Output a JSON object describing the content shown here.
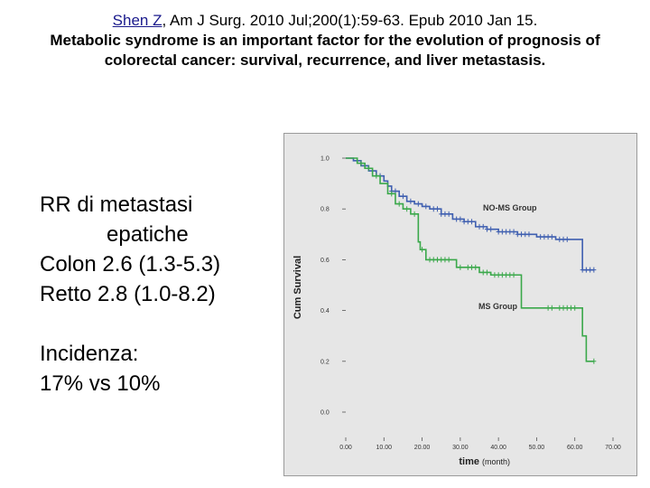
{
  "header": {
    "author_link": "Shen Z",
    "citation": ",  Am J Surg. 2010 Jul;200(1):59-63. Epub 2010 Jan 15.",
    "title": "Metabolic syndrome is an important factor for the evolution of prognosis of colorectal cancer: survival, recurrence, and liver metastasis."
  },
  "left_text": {
    "line1": "RR di metastasi",
    "line2": "epatiche",
    "line3": "Colon 2.6 (1.3-5.3)",
    "line4": "Retto  2.8 (1.0-8.2)",
    "line5": "Incidenza:",
    "line6": "17% vs 10%"
  },
  "colors": {
    "no_ms": "#3f5fb0",
    "ms": "#3aa84a",
    "plot_bg": "#e6e6e6"
  },
  "chart_data": {
    "type": "line",
    "xlabel": "time",
    "xunit": "(month)",
    "ylabel": "Cum Survival",
    "xlim": [
      0,
      70
    ],
    "ylim": [
      0,
      1
    ],
    "x_ticks": [
      "0.00",
      "10.00",
      "20.00",
      "30.00",
      "40.00",
      "50.00",
      "60.00",
      "70.00"
    ],
    "y_ticks": [
      "0.0",
      "0.2",
      "0.4",
      "0.6",
      "0.8",
      "1.0"
    ],
    "series": [
      {
        "name": "NO-MS Group",
        "step_x": [
          0,
          2,
          4,
          6,
          8,
          10,
          11,
          12,
          14,
          16,
          18,
          20,
          22,
          25,
          28,
          31,
          34,
          37,
          40,
          45,
          50,
          55,
          60,
          62,
          65
        ],
        "step_y": [
          1.0,
          0.99,
          0.97,
          0.95,
          0.93,
          0.91,
          0.89,
          0.87,
          0.85,
          0.83,
          0.82,
          0.81,
          0.8,
          0.78,
          0.76,
          0.75,
          0.73,
          0.72,
          0.71,
          0.7,
          0.69,
          0.68,
          0.68,
          0.56,
          0.56
        ],
        "censor_x": [
          3,
          5,
          7,
          9,
          12,
          13,
          15,
          17,
          19,
          21,
          23,
          24,
          25,
          26,
          27,
          29,
          30,
          31,
          32,
          33,
          35,
          36,
          37,
          38,
          40,
          41,
          42,
          43,
          44,
          45,
          46,
          47,
          48,
          51,
          52,
          53,
          54,
          56,
          57,
          58,
          62,
          63,
          64,
          65
        ]
      },
      {
        "name": "MS Group",
        "step_x": [
          0,
          3,
          5,
          7,
          9,
          11,
          13,
          15,
          17,
          19,
          19.5,
          21,
          29,
          35,
          38,
          46,
          55,
          62,
          63,
          65
        ],
        "step_y": [
          1.0,
          0.98,
          0.96,
          0.93,
          0.9,
          0.86,
          0.82,
          0.8,
          0.78,
          0.67,
          0.64,
          0.6,
          0.57,
          0.55,
          0.54,
          0.41,
          0.41,
          0.3,
          0.2,
          0.2
        ],
        "censor_x": [
          4,
          6,
          8,
          12,
          14,
          16,
          18,
          20,
          22,
          23,
          24,
          25,
          26,
          27,
          30,
          32,
          33,
          34,
          36,
          37,
          39,
          40,
          41,
          42,
          43,
          44,
          53,
          54,
          56,
          57,
          58,
          59,
          60,
          65
        ]
      }
    ],
    "annotations": [
      "NO-MS Group",
      "MS Group"
    ]
  }
}
